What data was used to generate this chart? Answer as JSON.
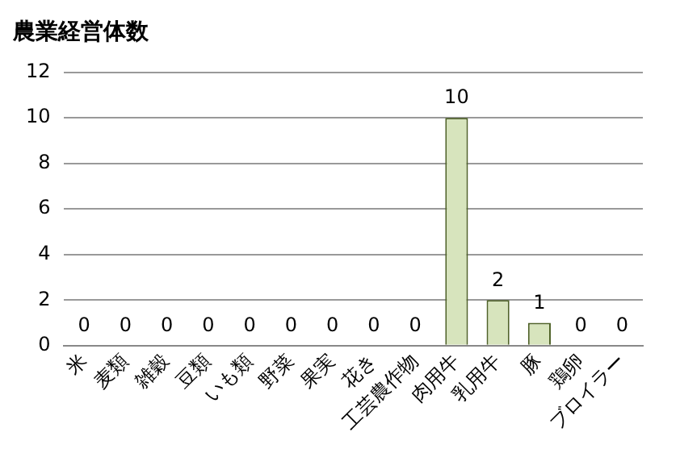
{
  "chart_data": {
    "type": "bar",
    "title": "農業経営体数",
    "categories": [
      "米",
      "麦類",
      "雑穀",
      "豆類",
      "いも類",
      "野菜",
      "果実",
      "花き",
      "工芸農作物",
      "肉用牛",
      "乳用牛",
      "豚",
      "鶏卵",
      "ブロイラー"
    ],
    "values": [
      0,
      0,
      0,
      0,
      0,
      0,
      0,
      0,
      0,
      10,
      2,
      1,
      0,
      0
    ],
    "color": "#d7e4bd",
    "ylim": [
      0,
      12
    ],
    "yticks": [
      0,
      2,
      4,
      6,
      8,
      10,
      12
    ],
    "grid": "y",
    "data_labels": true
  }
}
